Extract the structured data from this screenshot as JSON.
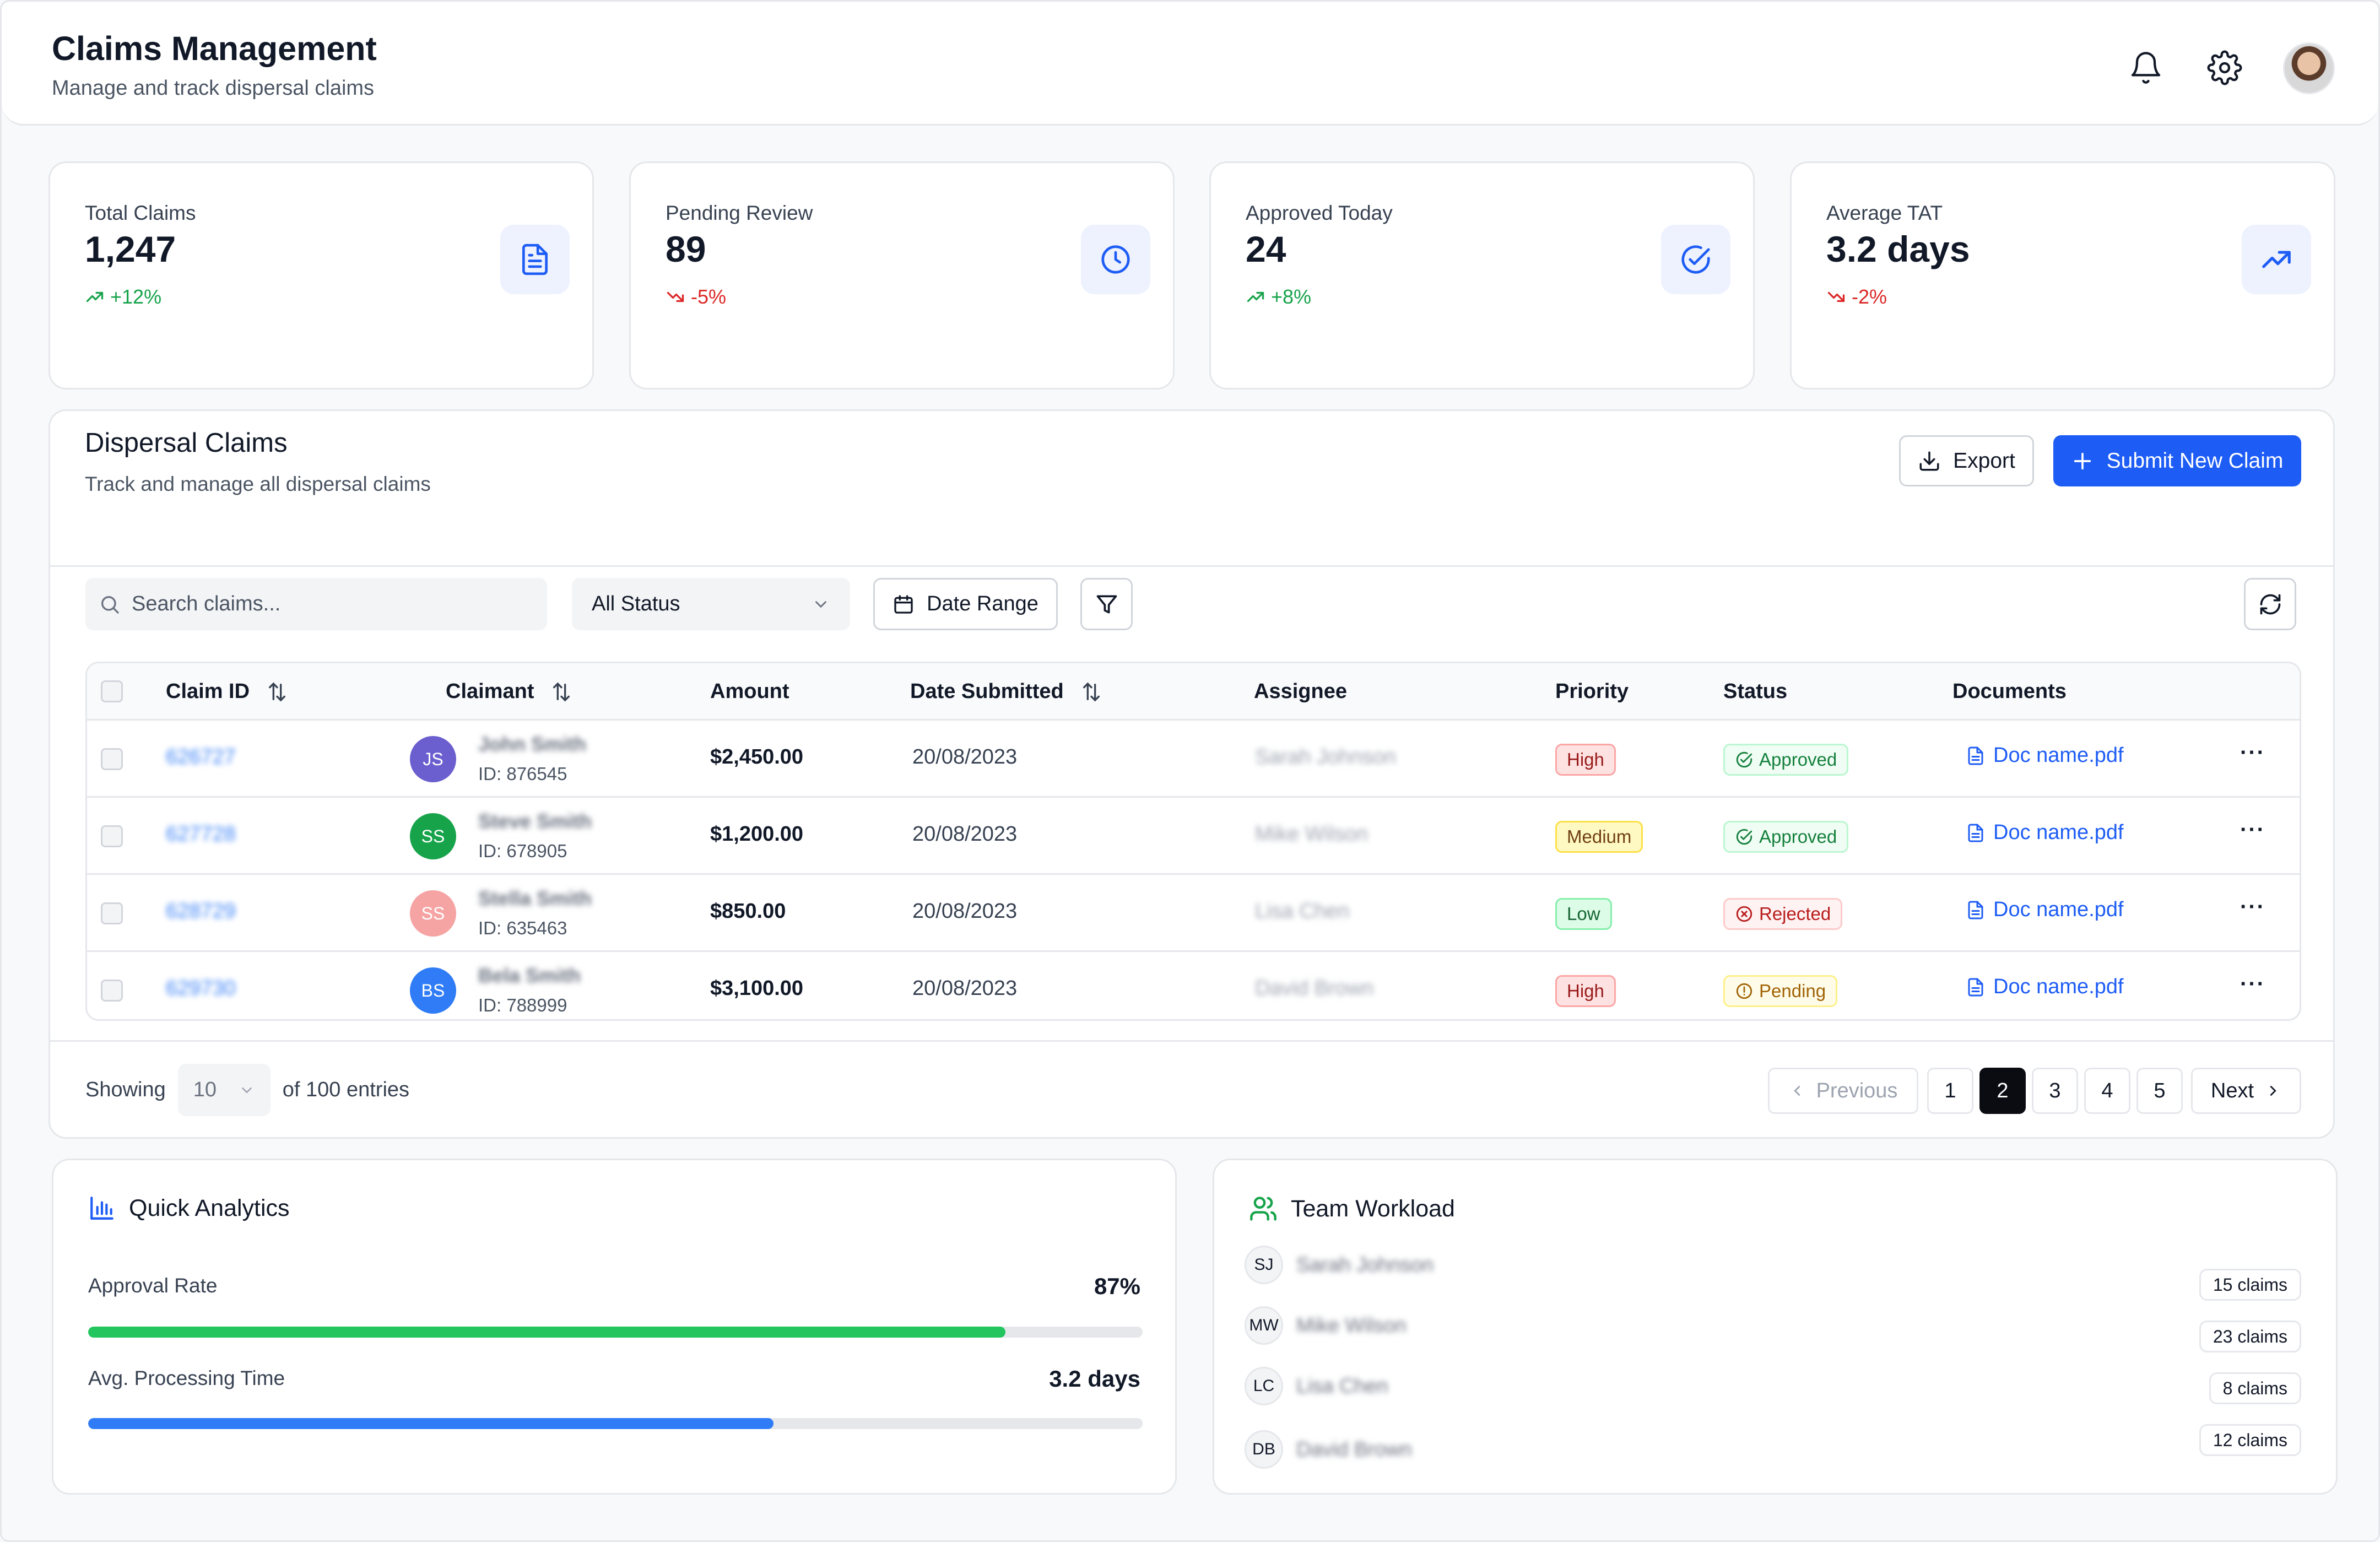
{
  "header": {
    "title": "Claims Management",
    "subtitle": "Manage and track dispersal claims"
  },
  "stats": [
    {
      "label": "Total Claims",
      "value": "1,247",
      "delta": "+12%",
      "trend": "up",
      "icon": "document-icon"
    },
    {
      "label": "Pending Review",
      "value": "89",
      "delta": "-5%",
      "trend": "down",
      "icon": "clock-icon"
    },
    {
      "label": "Approved Today",
      "value": "24",
      "delta": "+8%",
      "trend": "up",
      "icon": "check-circle-icon"
    },
    {
      "label": "Average TAT",
      "value": "3.2 days",
      "delta": "-2%",
      "trend": "down",
      "icon": "trending-up-icon"
    }
  ],
  "claims_panel": {
    "title": "Dispersal Claims",
    "subtitle": "Track and manage all dispersal claims",
    "export_label": "Export",
    "submit_label": "Submit New Claim",
    "search_placeholder": "Search claims...",
    "status_filter": "All Status",
    "date_range_label": "Date Range"
  },
  "table": {
    "columns": [
      "Claim ID",
      "Claimant",
      "Amount",
      "Date Submitted",
      "Assignee",
      "Priority",
      "Status",
      "Documents"
    ],
    "rows": [
      {
        "claim_id": "626727",
        "initials": "JS",
        "avatar_color": "#6b5fcf",
        "name": "John Smith",
        "claimant_id": "ID: 876545",
        "amount": "$2,450.00",
        "date": "20/08/2023",
        "assignee": "Sarah Johnson",
        "priority": "High",
        "status": "Approved",
        "document": "Doc name.pdf"
      },
      {
        "claim_id": "627728",
        "initials": "SS",
        "avatar_color": "#16a34a",
        "name": "Steve Smith",
        "claimant_id": "ID: 678905",
        "amount": "$1,200.00",
        "date": "20/08/2023",
        "assignee": "Mike Wilson",
        "priority": "Medium",
        "status": "Approved",
        "document": "Doc name.pdf"
      },
      {
        "claim_id": "628729",
        "initials": "SS",
        "avatar_color": "#f6a3a3",
        "name": "Stella Smith",
        "claimant_id": "ID: 635463",
        "amount": "$850.00",
        "date": "20/08/2023",
        "assignee": "Lisa Chen",
        "priority": "Low",
        "status": "Rejected",
        "document": "Doc name.pdf"
      },
      {
        "claim_id": "629730",
        "initials": "BS",
        "avatar_color": "#2f7cf6",
        "name": "Bela Smith",
        "claimant_id": "ID: 788999",
        "amount": "$3,100.00",
        "date": "20/08/2023",
        "assignee": "David Brown",
        "priority": "High",
        "status": "Pending",
        "document": "Doc name.pdf"
      }
    ]
  },
  "pagination": {
    "showing_label": "Showing",
    "page_size": "10",
    "entries_label": "of 100 entries",
    "previous_label": "Previous",
    "next_label": "Next",
    "pages": [
      "1",
      "2",
      "3",
      "4",
      "5"
    ],
    "current_page": "2"
  },
  "analytics": {
    "title": "Quick Analytics",
    "approval_rate_label": "Approval Rate",
    "approval_rate_value": "87%",
    "approval_rate_fraction": 0.87,
    "processing_time_label": "Avg. Processing Time",
    "processing_time_value": "3.2 days",
    "processing_time_fraction": 0.65
  },
  "workload": {
    "title": "Team Workload",
    "members": [
      {
        "initials": "SJ",
        "name": "Sarah Johnson",
        "claims": "15 claims"
      },
      {
        "initials": "MW",
        "name": "Mike Wilson",
        "claims": "23 claims"
      },
      {
        "initials": "LC",
        "name": "Lisa Chen",
        "claims": "8 claims"
      },
      {
        "initials": "DB",
        "name": "David Brown",
        "claims": "12 claims"
      }
    ]
  },
  "colors": {
    "accent": "#1d5cf5",
    "success": "#16a34a",
    "danger": "#dc2626",
    "approval_bar": "#22c55e",
    "processing_bar": "#2f7cf6"
  }
}
